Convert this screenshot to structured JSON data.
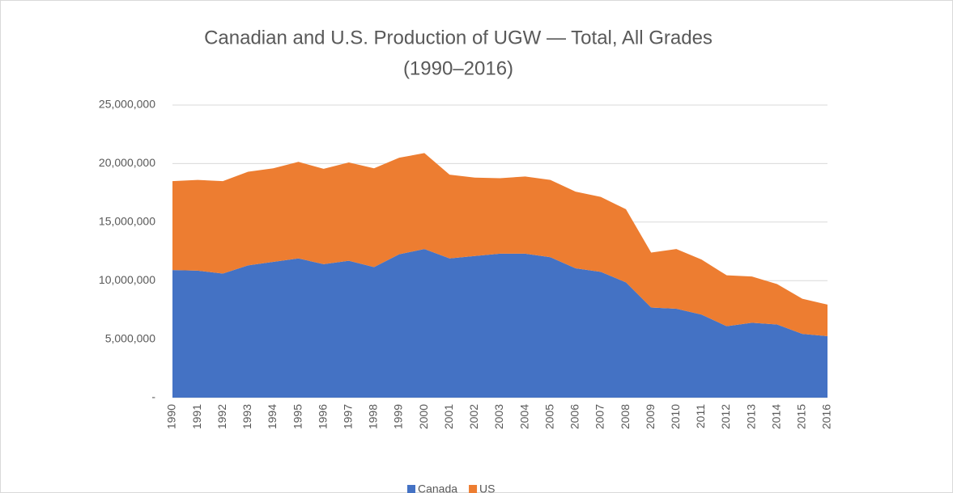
{
  "chart_data": {
    "type": "stacked_area",
    "title": [
      "Canadian and U.S. Production of UGW — Total, All Grades",
      "(1990–2016)"
    ],
    "categories": [
      "1990",
      "1991",
      "1992",
      "1993",
      "1994",
      "1995",
      "1996",
      "1997",
      "1998",
      "1999",
      "2000",
      "2001",
      "2002",
      "2003",
      "2004",
      "2005",
      "2006",
      "2007",
      "2008",
      "2009",
      "2010",
      "2011",
      "2012",
      "2013",
      "2014",
      "2015",
      "2016"
    ],
    "series": [
      {
        "name": "Canada",
        "color": "#4472c4",
        "values": [
          10900000,
          10850000,
          10600000,
          11300000,
          11600000,
          11900000,
          11400000,
          11700000,
          11150000,
          12250000,
          12700000,
          11900000,
          12100000,
          12300000,
          12300000,
          12000000,
          11050000,
          10750000,
          9850000,
          7700000,
          7600000,
          7100000,
          6100000,
          6400000,
          6250000,
          5450000,
          5250000
        ]
      },
      {
        "name": "US",
        "color": "#ed7d31",
        "values": [
          7600000,
          7750000,
          7900000,
          8000000,
          8000000,
          8250000,
          8150000,
          8400000,
          8450000,
          8250000,
          8200000,
          7150000,
          6700000,
          6450000,
          6600000,
          6600000,
          6550000,
          6400000,
          6250000,
          4700000,
          5100000,
          4700000,
          4350000,
          3950000,
          3450000,
          3000000,
          2700000
        ]
      }
    ],
    "ylim": [
      0,
      25000000
    ],
    "yticks": [
      {
        "value": 0,
        "label": "-"
      },
      {
        "value": 5000000,
        "label": "5,000,000"
      },
      {
        "value": 10000000,
        "label": "10,000,000"
      },
      {
        "value": 15000000,
        "label": "15,000,000"
      },
      {
        "value": 20000000,
        "label": "20,000,000"
      },
      {
        "value": 25000000,
        "label": "25,000,000"
      }
    ],
    "grid": true,
    "legend": "bottom"
  }
}
